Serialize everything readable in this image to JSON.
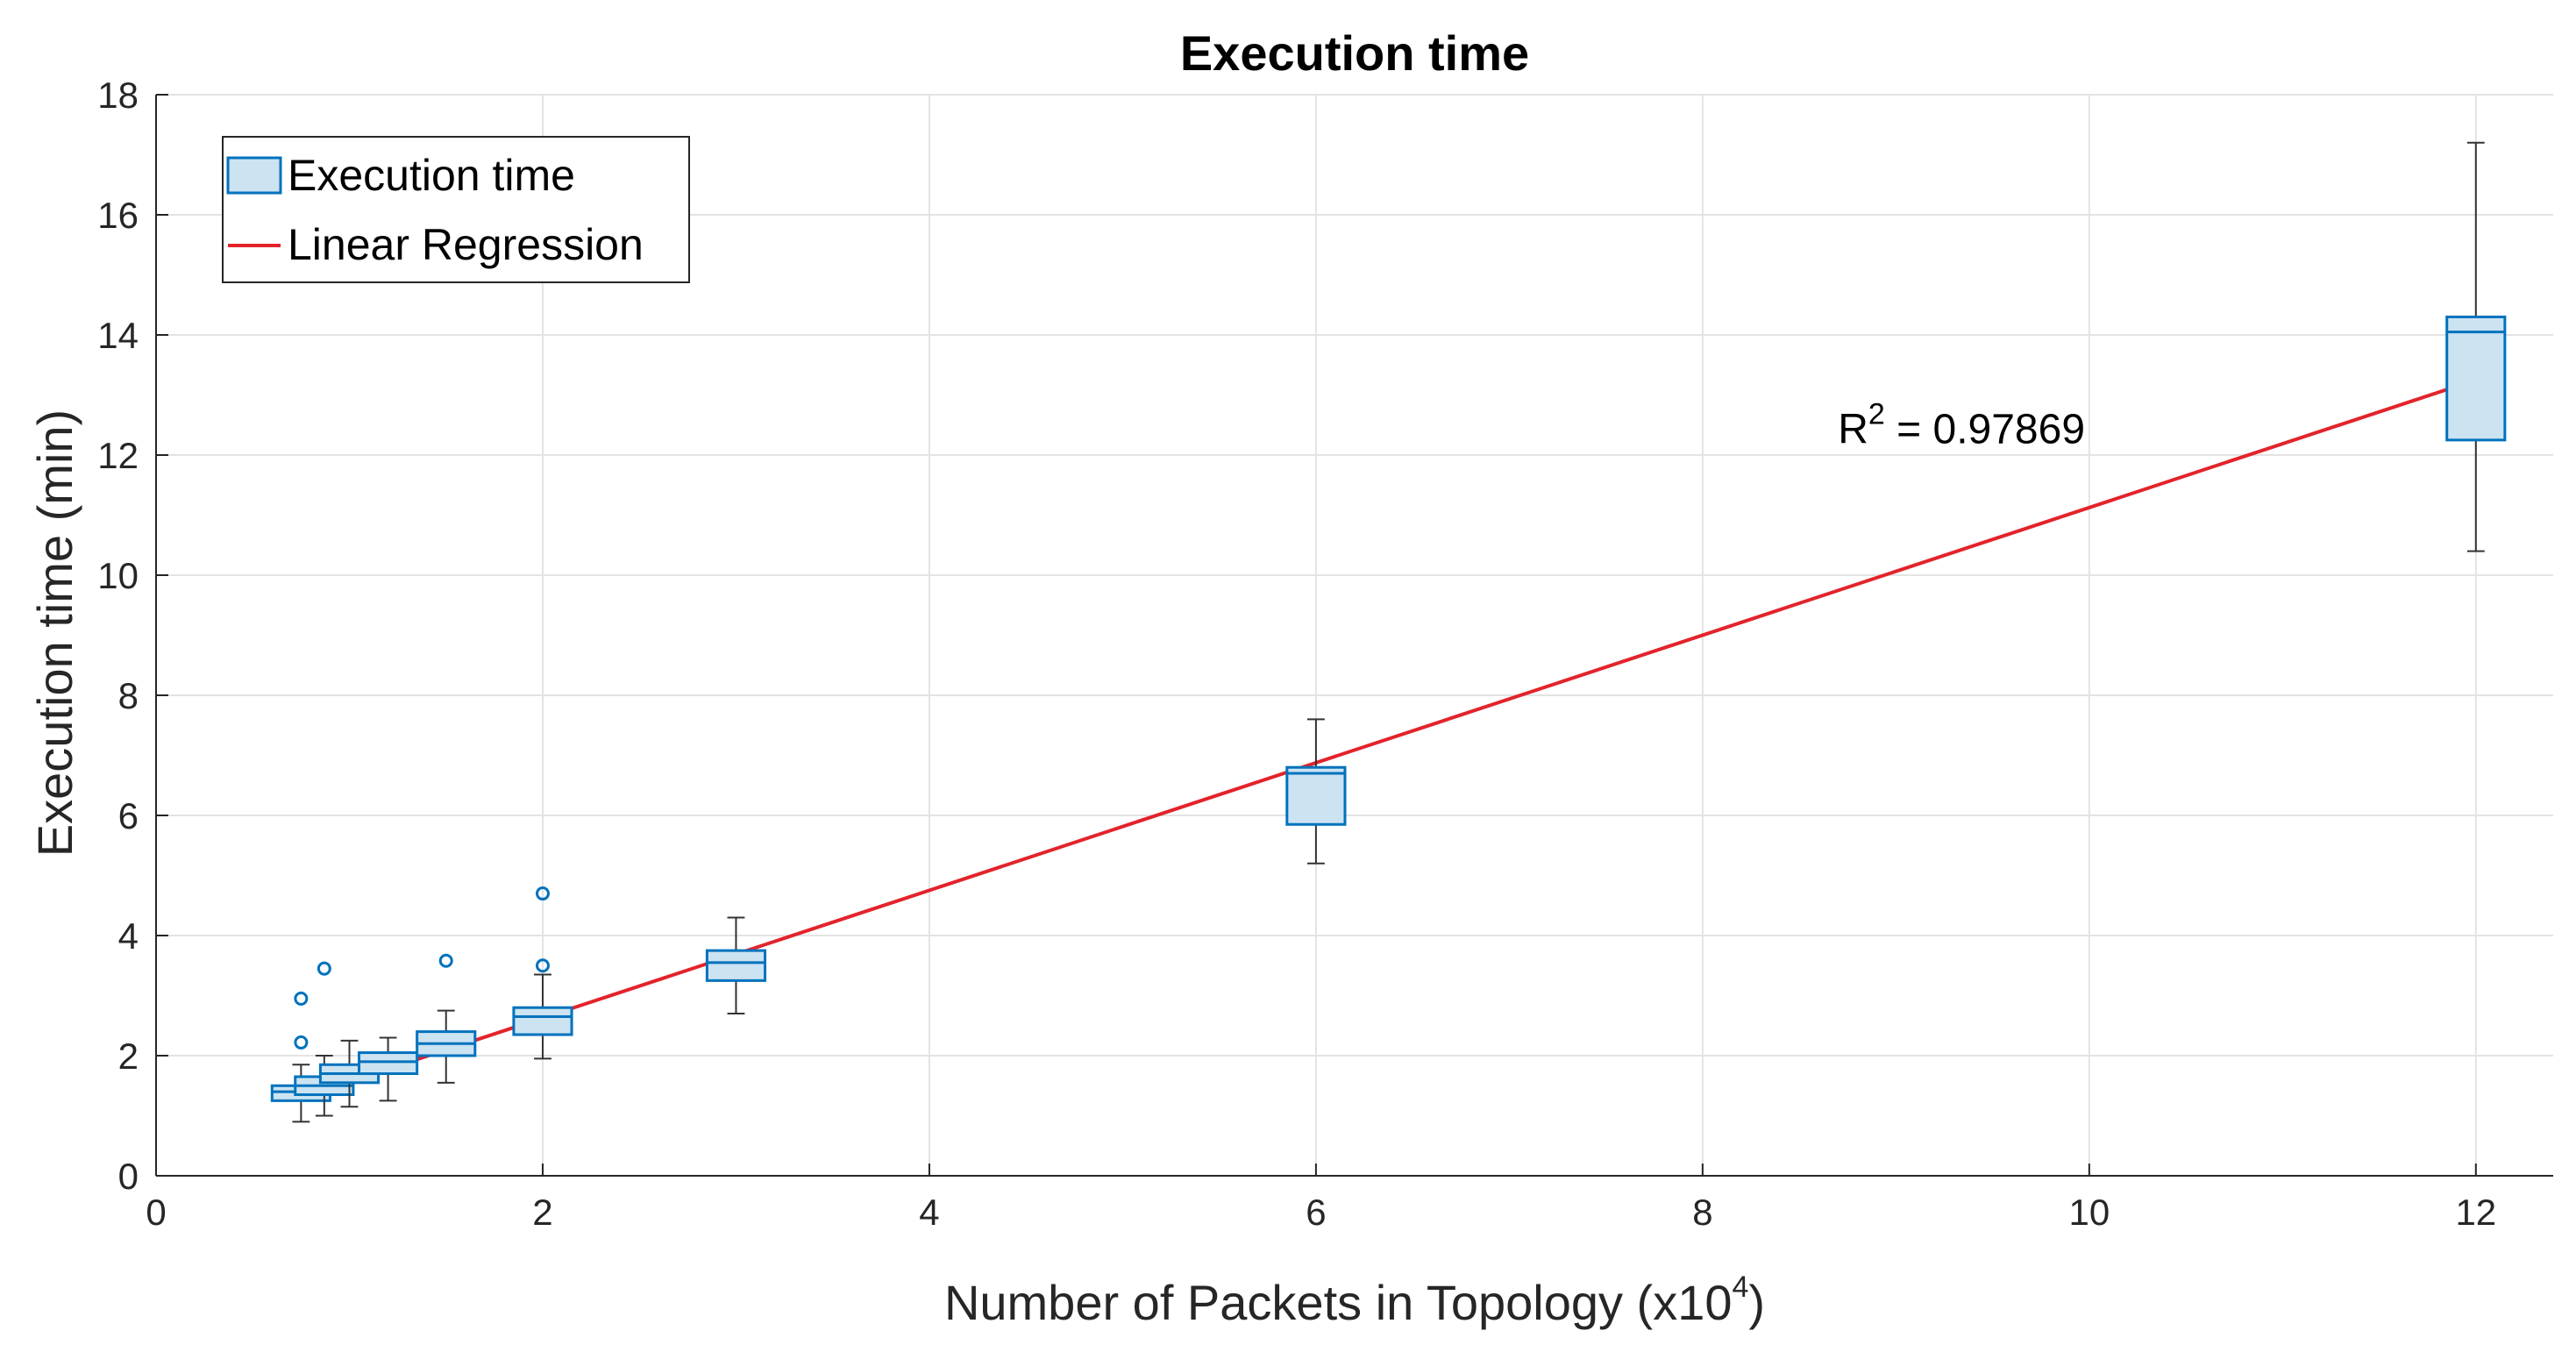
{
  "chart_data": {
    "type": "box",
    "title": "Execution time",
    "xlabel": "Number of Packets in Topology (x10",
    "xlabel_exponent": "4",
    "xlabel_suffix": ")",
    "ylabel": "Execution time (min)",
    "xlim": [
      0,
      12.4
    ],
    "ylim": [
      0,
      18
    ],
    "xticks": [
      0,
      2,
      4,
      6,
      8,
      10,
      12
    ],
    "yticks": [
      0,
      2,
      4,
      6,
      8,
      10,
      12,
      14,
      16,
      18
    ],
    "grid": true,
    "legend_position": "top-left",
    "colors": {
      "box_fill": "#cce3f2",
      "box_edge": "#0072bd",
      "whisker": "#333333",
      "regression": "#e3232b",
      "grid": "#e3e3e3",
      "axis": "#262626"
    },
    "legend": [
      {
        "label": "Execution time",
        "kind": "box"
      },
      {
        "label": "Linear Regression",
        "kind": "line"
      }
    ],
    "boxes": [
      {
        "x": 0.75,
        "min": 0.9,
        "q1": 1.25,
        "median": 1.4,
        "q3": 1.5,
        "max": 1.85,
        "outliers": [
          2.95,
          2.22
        ]
      },
      {
        "x": 0.87,
        "min": 1.0,
        "q1": 1.35,
        "median": 1.5,
        "q3": 1.65,
        "max": 2.0,
        "outliers": [
          3.45
        ]
      },
      {
        "x": 1.0,
        "min": 1.15,
        "q1": 1.55,
        "median": 1.7,
        "q3": 1.85,
        "max": 2.25,
        "outliers": []
      },
      {
        "x": 1.2,
        "min": 1.25,
        "q1": 1.7,
        "median": 1.9,
        "q3": 2.05,
        "max": 2.3,
        "outliers": []
      },
      {
        "x": 1.5,
        "min": 1.55,
        "q1": 2.0,
        "median": 2.2,
        "q3": 2.4,
        "max": 2.75,
        "outliers": [
          3.58
        ]
      },
      {
        "x": 2.0,
        "min": 1.95,
        "q1": 2.35,
        "median": 2.65,
        "q3": 2.8,
        "max": 3.35,
        "outliers": [
          3.5,
          4.7
        ]
      },
      {
        "x": 3.0,
        "min": 2.7,
        "q1": 3.25,
        "median": 3.55,
        "q3": 3.75,
        "max": 4.3,
        "outliers": []
      },
      {
        "x": 6.0,
        "min": 5.2,
        "q1": 5.85,
        "median": 6.7,
        "q3": 6.8,
        "max": 7.6,
        "outliers": []
      },
      {
        "x": 12.0,
        "min": 10.4,
        "q1": 12.25,
        "median": 14.05,
        "q3": 14.3,
        "max": 17.2,
        "outliers": []
      }
    ],
    "regression": {
      "x": [
        0.75,
        12.0
      ],
      "y": [
        1.3,
        13.25
      ]
    },
    "annotation": {
      "prefix": "R",
      "superscript": "2",
      "text": " = 0.97869",
      "x": 8.7,
      "y": 12.2
    }
  }
}
